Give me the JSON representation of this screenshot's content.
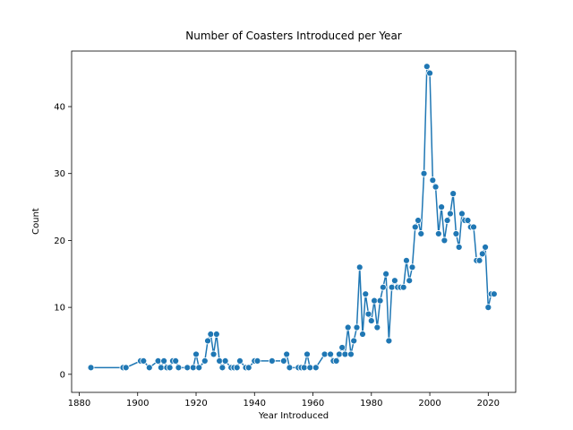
{
  "chart_data": {
    "type": "line",
    "title": "Number of Coasters Introduced per Year",
    "x_label": "Year Introduced",
    "y_label": "Count",
    "x": [
      1884,
      1895,
      1896,
      1901,
      1902,
      1904,
      1907,
      1908,
      1909,
      1910,
      1911,
      1912,
      1913,
      1914,
      1917,
      1919,
      1920,
      1921,
      1923,
      1924,
      1925,
      1926,
      1927,
      1928,
      1929,
      1930,
      1932,
      1933,
      1934,
      1935,
      1937,
      1938,
      1940,
      1941,
      1946,
      1950,
      1951,
      1952,
      1955,
      1956,
      1957,
      1958,
      1959,
      1961,
      1964,
      1966,
      1967,
      1968,
      1969,
      1970,
      1971,
      1972,
      1973,
      1974,
      1975,
      1976,
      1977,
      1978,
      1979,
      1980,
      1981,
      1982,
      1983,
      1984,
      1985,
      1986,
      1987,
      1988,
      1989,
      1990,
      1991,
      1992,
      1993,
      1994,
      1995,
      1996,
      1997,
      1998,
      1999,
      2000,
      2001,
      2002,
      2003,
      2004,
      2005,
      2006,
      2007,
      2008,
      2009,
      2010,
      2011,
      2012,
      2013,
      2014,
      2015,
      2016,
      2017,
      2018,
      2019,
      2020,
      2021,
      2022
    ],
    "series": [
      {
        "color": "#1f77b4",
        "values": [
          1,
          1,
          1,
          2,
          2,
          1,
          2,
          1,
          2,
          1,
          1,
          2,
          2,
          1,
          1,
          1,
          3,
          1,
          2,
          5,
          6,
          3,
          6,
          2,
          1,
          2,
          1,
          1,
          1,
          2,
          1,
          1,
          2,
          2,
          2,
          2,
          3,
          1,
          1,
          1,
          1,
          3,
          1,
          1,
          3,
          3,
          2,
          2,
          3,
          4,
          3,
          7,
          3,
          5,
          7,
          16,
          6,
          12,
          9,
          8,
          11,
          7,
          11,
          13,
          15,
          5,
          13,
          14,
          13,
          13,
          13,
          17,
          14,
          16,
          22,
          23,
          21,
          30,
          46,
          45,
          29,
          28,
          21,
          25,
          20,
          23,
          24,
          27,
          21,
          19,
          24,
          23,
          23,
          22,
          22,
          17,
          17,
          18,
          19,
          10,
          12,
          12
        ]
      }
    ],
    "xlim": [
      1877.4,
      2029.4
    ],
    "ylim": [
      -2.7,
      48.3
    ],
    "xticks": [
      1880,
      1900,
      1920,
      1940,
      1960,
      1980,
      2000,
      2020
    ],
    "yticks": [
      0,
      10,
      20,
      30,
      40
    ]
  }
}
